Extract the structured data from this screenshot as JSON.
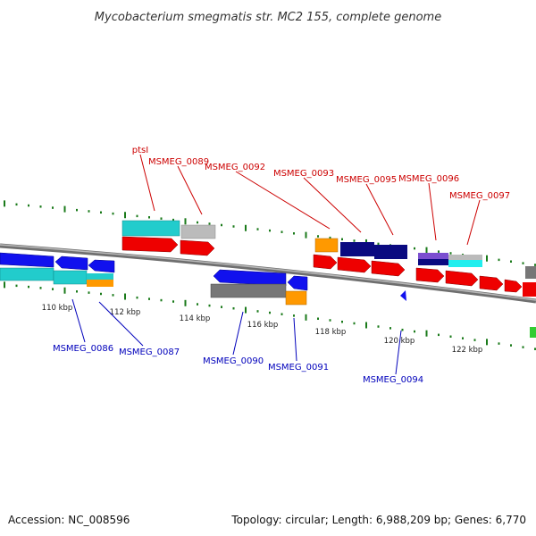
{
  "title": "Mycobacterium smegmatis str. MC2 155, complete genome",
  "footer": {
    "accession": "Accession: NC_008596",
    "summary": "Topology: circular; Length: 6,988,209 bp; Genes: 6,770"
  },
  "colors": {
    "backbone": "#8a8a8a",
    "tick": "#1a7a1a",
    "label_forward": "#cc0000",
    "label_reverse": "#0000bb",
    "cds_red": "#ee0000",
    "cds_blue": "#1111ee",
    "cds_cyan": "#22cccc",
    "cds_gray": "#bbbbbb",
    "cds_darkgray": "#777777",
    "cds_orange": "#ff9900",
    "cds_navy": "#0a0a80",
    "cds_purple": "#7b4fd0"
  },
  "ticks": [
    {
      "kbp": 110,
      "label": "110 kbp"
    },
    {
      "kbp": 112,
      "label": "112 kbp"
    },
    {
      "kbp": 114,
      "label": "114 kbp"
    },
    {
      "kbp": 116,
      "label": "116 kbp"
    },
    {
      "kbp": 118,
      "label": "118 kbp"
    },
    {
      "kbp": 120,
      "label": "120 kbp"
    },
    {
      "kbp": 122,
      "label": "122 kbp"
    }
  ],
  "gene_labels": [
    {
      "name": "ptsI",
      "strand": "forward"
    },
    {
      "name": "MSMEG_0089",
      "strand": "forward"
    },
    {
      "name": "MSMEG_0092",
      "strand": "forward"
    },
    {
      "name": "MSMEG_0093",
      "strand": "forward"
    },
    {
      "name": "MSMEG_0095",
      "strand": "forward"
    },
    {
      "name": "MSMEG_0096",
      "strand": "forward"
    },
    {
      "name": "MSMEG_0097",
      "strand": "forward"
    },
    {
      "name": "MSMEG_0086",
      "strand": "reverse"
    },
    {
      "name": "MSMEG_0087",
      "strand": "reverse"
    },
    {
      "name": "MSMEG_0090",
      "strand": "reverse"
    },
    {
      "name": "MSMEG_0091",
      "strand": "reverse"
    },
    {
      "name": "MSMEG_0094",
      "strand": "reverse"
    }
  ]
}
